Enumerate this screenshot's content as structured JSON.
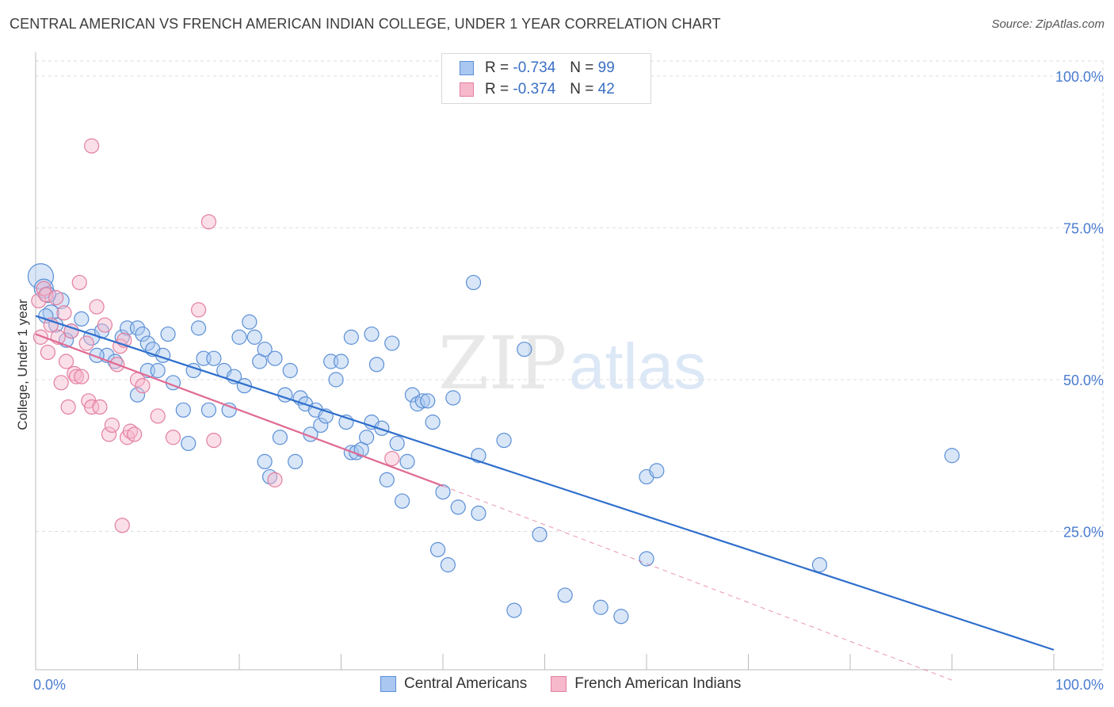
{
  "title": "CENTRAL AMERICAN VS FRENCH AMERICAN INDIAN COLLEGE, UNDER 1 YEAR CORRELATION CHART",
  "source": "Source: ZipAtlas.com",
  "watermark": {
    "zip": "ZIP",
    "atlas": "atlas"
  },
  "legend": {
    "rows": [
      {
        "r_label": "R = ",
        "r_value": "-0.734",
        "n_label": "N = ",
        "n_value": "99"
      },
      {
        "r_label": "R = ",
        "r_value": "-0.374",
        "n_label": "N = ",
        "n_value": "42"
      }
    ]
  },
  "colors": {
    "blue_fill": "#a9c7f0",
    "blue_stroke": "#5b8fd6",
    "blue_line": "#2f6fcc",
    "pink_fill": "#f6b8cb",
    "pink_stroke": "#e27fa0",
    "pink_line": "#e06a92",
    "grid": "#dddddd"
  },
  "chart_data": {
    "type": "scatter",
    "ylabel": "College, Under 1 year",
    "xlim": [
      0,
      100
    ],
    "ylim": [
      0,
      100
    ],
    "y_ticks": [
      "100.0%",
      "75.0%",
      "50.0%",
      "25.0%"
    ],
    "y_tick_values": [
      100,
      75,
      50,
      25
    ],
    "x_tick_labels": [
      "0.0%",
      "100.0%"
    ],
    "grid": "horizontal dashed",
    "legend_placement": "top-center",
    "series": [
      {
        "name": "Central Americans",
        "color": "#a9c7f0",
        "trend": {
          "x": [
            0,
            100
          ],
          "y": [
            60.5,
            5.5
          ]
        },
        "points": [
          [
            0.5,
            67,
            16
          ],
          [
            0.8,
            65,
            12
          ],
          [
            1.5,
            61,
            10
          ],
          [
            2.5,
            63,
            10
          ],
          [
            3.5,
            58,
            9
          ],
          [
            4.5,
            60,
            9
          ],
          [
            5.5,
            57,
            10
          ],
          [
            6.5,
            58,
            9
          ],
          [
            7,
            54,
            9
          ],
          [
            7.8,
            53,
            9
          ],
          [
            8.5,
            57,
            9
          ],
          [
            9,
            58.5,
            9
          ],
          [
            10,
            58.5,
            9
          ],
          [
            10.5,
            57.5,
            9
          ],
          [
            10,
            47.5,
            9
          ],
          [
            11,
            56,
            9
          ],
          [
            11.5,
            55,
            9
          ],
          [
            11,
            51.5,
            9
          ],
          [
            12,
            51.5,
            9
          ],
          [
            12.5,
            54,
            9
          ],
          [
            13,
            57.5,
            9
          ],
          [
            13.5,
            49.5,
            9
          ],
          [
            14.5,
            45,
            9
          ],
          [
            15,
            39.5,
            9
          ],
          [
            15.5,
            51.5,
            9
          ],
          [
            16,
            58.5,
            9
          ],
          [
            16.5,
            53.5,
            9
          ],
          [
            17,
            45,
            9
          ],
          [
            17.5,
            53.5,
            9
          ],
          [
            18.5,
            51.5,
            9
          ],
          [
            19,
            45,
            9
          ],
          [
            19.5,
            50.5,
            9
          ],
          [
            20,
            57,
            9
          ],
          [
            20.5,
            49,
            9
          ],
          [
            21,
            59.5,
            9
          ],
          [
            21.5,
            57,
            9
          ],
          [
            22,
            53,
            9
          ],
          [
            22.5,
            55,
            9
          ],
          [
            22.5,
            36.5,
            9
          ],
          [
            23,
            34,
            9
          ],
          [
            23.5,
            53.5,
            9
          ],
          [
            24,
            40.5,
            9
          ],
          [
            24.5,
            47.5,
            9
          ],
          [
            25,
            51.5,
            9
          ],
          [
            25.5,
            36.5,
            9
          ],
          [
            26,
            47,
            9
          ],
          [
            26.5,
            46,
            9
          ],
          [
            27,
            41,
            9
          ],
          [
            27.5,
            45,
            9
          ],
          [
            28,
            42.5,
            9
          ],
          [
            28.5,
            44,
            9
          ],
          [
            29,
            53,
            9
          ],
          [
            29.5,
            50,
            9
          ],
          [
            30,
            53,
            9
          ],
          [
            30.5,
            43,
            9
          ],
          [
            31,
            38,
            9
          ],
          [
            31,
            57,
            9
          ],
          [
            31.5,
            38,
            9
          ],
          [
            32,
            38.5,
            9
          ],
          [
            32.5,
            40.5,
            9
          ],
          [
            33,
            43,
            9
          ],
          [
            33,
            57.5,
            9
          ],
          [
            33.5,
            52.5,
            9
          ],
          [
            34,
            42,
            9
          ],
          [
            34.5,
            33.5,
            9
          ],
          [
            35,
            56,
            9
          ],
          [
            35.5,
            39.5,
            9
          ],
          [
            36,
            30,
            9
          ],
          [
            36.5,
            36.5,
            9
          ],
          [
            37,
            47.5,
            9
          ],
          [
            37.5,
            46,
            9
          ],
          [
            38,
            46.5,
            9
          ],
          [
            38.5,
            46.5,
            9
          ],
          [
            39,
            43,
            9
          ],
          [
            39.5,
            22,
            9
          ],
          [
            40,
            31.5,
            9
          ],
          [
            40.5,
            19.5,
            9
          ],
          [
            41,
            47,
            9
          ],
          [
            41.5,
            29,
            9
          ],
          [
            43,
            66,
            9
          ],
          [
            43.5,
            37.5,
            9
          ],
          [
            43.5,
            28,
            9
          ],
          [
            46,
            40,
            9
          ],
          [
            47,
            12,
            9
          ],
          [
            48,
            55,
            9
          ],
          [
            49.5,
            24.5,
            9
          ],
          [
            52,
            14.5,
            9
          ],
          [
            55.5,
            12.5,
            9
          ],
          [
            57.5,
            11,
            9
          ],
          [
            60,
            20.5,
            9
          ],
          [
            60,
            34,
            9
          ],
          [
            61,
            35,
            9
          ],
          [
            77,
            19.5,
            9
          ],
          [
            90,
            37.5,
            9
          ],
          [
            1,
            60.5,
            9
          ],
          [
            2,
            59,
            9
          ],
          [
            3,
            56.5,
            9
          ],
          [
            6,
            54,
            9
          ],
          [
            1.2,
            64,
            10
          ]
        ]
      },
      {
        "name": "French American Indians",
        "color": "#f6b8cb",
        "trend": {
          "x": [
            0,
            40
          ],
          "y": [
            57.5,
            32.5
          ]
        },
        "trend_ext": {
          "x": [
            40,
            90
          ],
          "y": [
            32.5,
            0.5
          ]
        },
        "points": [
          [
            0.3,
            63,
            9
          ],
          [
            0.5,
            57,
            9
          ],
          [
            0.8,
            65,
            9
          ],
          [
            1,
            64,
            9
          ],
          [
            1.2,
            54.5,
            9
          ],
          [
            1.5,
            59,
            9
          ],
          [
            2,
            63.5,
            9
          ],
          [
            2.2,
            57,
            9
          ],
          [
            2.5,
            49.5,
            9
          ],
          [
            2.8,
            61,
            9
          ],
          [
            3,
            53,
            9
          ],
          [
            3.2,
            45.5,
            9
          ],
          [
            3.5,
            58,
            9
          ],
          [
            3.8,
            51,
            9
          ],
          [
            4,
            50.5,
            9
          ],
          [
            4.3,
            66,
            9
          ],
          [
            4.5,
            50.5,
            9
          ],
          [
            5,
            56,
            9
          ],
          [
            5.2,
            46.5,
            9
          ],
          [
            5.5,
            45.5,
            9
          ],
          [
            6,
            62,
            9
          ],
          [
            6.3,
            45.5,
            9
          ],
          [
            6.8,
            59,
            9
          ],
          [
            7.2,
            41,
            9
          ],
          [
            7.5,
            42.5,
            9
          ],
          [
            8,
            52.5,
            9
          ],
          [
            8.3,
            55.5,
            9
          ],
          [
            8.7,
            56.5,
            9
          ],
          [
            9,
            40.5,
            9
          ],
          [
            9.3,
            41.5,
            9
          ],
          [
            9.7,
            41,
            9
          ],
          [
            10,
            50,
            9
          ],
          [
            10.5,
            49,
            9
          ],
          [
            12,
            44,
            9
          ],
          [
            13.5,
            40.5,
            9
          ],
          [
            16,
            61.5,
            9
          ],
          [
            17.5,
            40,
            9
          ],
          [
            23.5,
            33.5,
            9
          ],
          [
            35,
            37,
            9
          ],
          [
            5.5,
            88.5,
            9
          ],
          [
            17,
            76,
            9
          ],
          [
            8.5,
            26,
            9
          ]
        ]
      }
    ]
  }
}
